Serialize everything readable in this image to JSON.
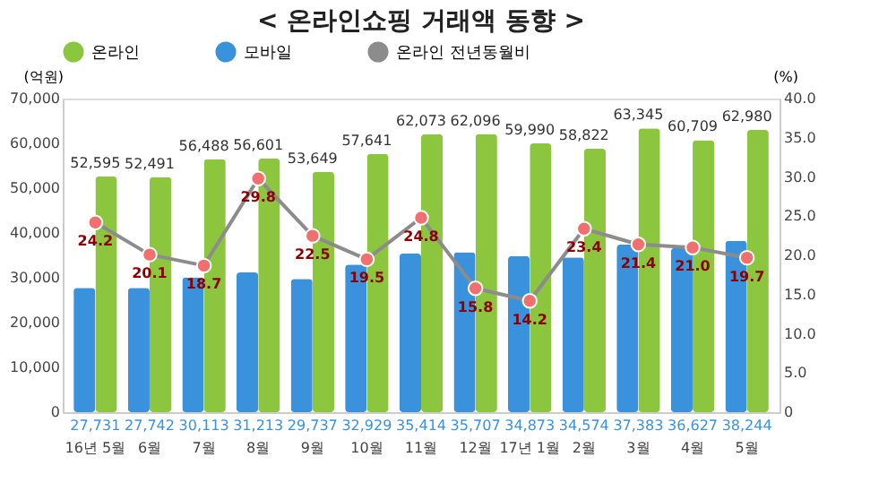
{
  "chart_data": {
    "type": "bar",
    "title": "< 온라인쇼핑 거래액 동향 >",
    "ylabel": "(억원)",
    "y2label": "(%)",
    "categories": [
      "16년 5월",
      "6월",
      "7월",
      "8월",
      "9월",
      "10월",
      "11월",
      "12월",
      "17년 1월",
      "2월",
      "3월",
      "4월",
      "5월"
    ],
    "series": [
      {
        "name": "온라인",
        "color": "#8cc63e",
        "values": [
          52595,
          52491,
          56488,
          56601,
          53649,
          57641,
          62073,
          62096,
          59990,
          58822,
          63345,
          60709,
          62980
        ],
        "value_labels": [
          "52,595",
          "52,491",
          "56,488",
          "56,601",
          "53,649",
          "57,641",
          "62,073",
          "62,096",
          "59,990",
          "58,822",
          "63,345",
          "60,709",
          "62,980"
        ]
      },
      {
        "name": "모바일",
        "color": "#3a92dc",
        "values": [
          27731,
          27742,
          30113,
          31213,
          29737,
          32929,
          35414,
          35707,
          34873,
          34574,
          37383,
          36627,
          38244
        ],
        "value_labels": [
          "27,731",
          "27,742",
          "30,113",
          "31,213",
          "29,737",
          "32,929",
          "35,414",
          "35,707",
          "34,873",
          "34,574",
          "37,383",
          "36,627",
          "38,244"
        ]
      },
      {
        "name": "온라인 전년동월비",
        "type": "line",
        "axis": "y2",
        "color": "#8c8c8c",
        "marker": "circle",
        "line_style": "solid",
        "values": [
          24.2,
          20.1,
          18.7,
          29.8,
          22.5,
          19.5,
          24.8,
          15.8,
          14.2,
          23.4,
          21.4,
          21.0,
          19.7
        ],
        "value_labels": [
          "24.2",
          "20.1",
          "18.7",
          "29.8",
          "22.5",
          "19.5",
          "24.8",
          "15.8",
          "14.2",
          "23.4",
          "21.4",
          "21.0",
          "19.7"
        ]
      }
    ],
    "ylim": [
      0,
      70000
    ],
    "yticks": [
      0,
      {
        "value": 10000,
        "label": "10,000"
      },
      {
        "value": 20000,
        "label": "20,000"
      },
      {
        "value": 30000,
        "label": "30,000"
      },
      {
        "value": 40000,
        "label": "40,000"
      },
      {
        "value": 50000,
        "label": "50,000"
      },
      {
        "value": 60000,
        "label": "60,000"
      },
      {
        "value": 70000,
        "label": "70,000"
      }
    ],
    "y2lim": [
      0,
      40
    ],
    "y2ticks": [
      0,
      {
        "value": 5,
        "label": "5.0"
      },
      {
        "value": 10,
        "label": "10.0"
      },
      {
        "value": 15,
        "label": "15.0"
      },
      {
        "value": 20,
        "label": "20.0"
      },
      {
        "value": 25,
        "label": "25.0"
      },
      {
        "value": 30,
        "label": "30.0"
      },
      {
        "value": 35,
        "label": "35.0"
      },
      {
        "value": 40,
        "label": "40.0"
      }
    ],
    "legend": "top",
    "grid": false
  }
}
